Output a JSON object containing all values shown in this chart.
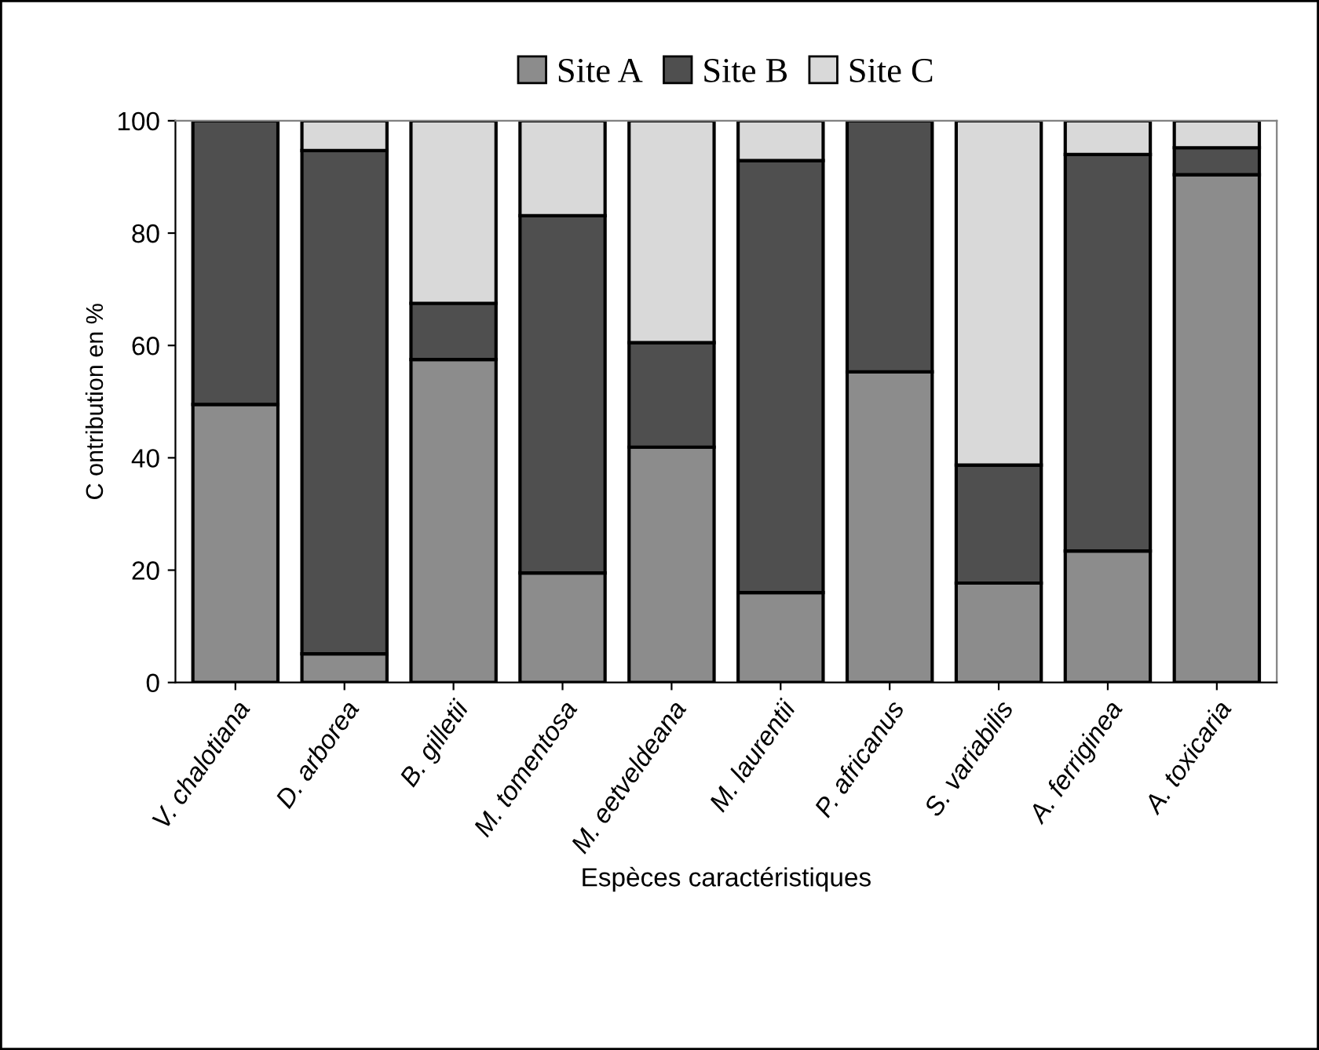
{
  "chart_data": {
    "type": "bar",
    "stacked": true,
    "categories": [
      "V. chalotiana",
      "D. arborea",
      "B. gilletii",
      "M. tomentosa",
      "M. eetveldeana",
      "M. laurentii",
      "P. africanus",
      "S. variabilis",
      "A. ferriginea",
      "A. toxicaria"
    ],
    "series": [
      {
        "name": "Site A",
        "color": "#8c8c8c",
        "values": [
          49.5,
          5.1,
          57.5,
          19.5,
          41.9,
          16,
          55.3,
          17.7,
          23.4,
          90.4
        ]
      },
      {
        "name": "Site B",
        "color": "#4f4f4f",
        "values": [
          50.5,
          89.6,
          10,
          63.6,
          18.6,
          76.9,
          44.7,
          21,
          70.6,
          4.8
        ]
      },
      {
        "name": "Site C",
        "color": "#d9d9d9",
        "values": [
          null,
          5.3,
          32.5,
          16.9,
          39.5,
          7.1,
          null,
          61.3,
          6,
          4.8
        ]
      }
    ],
    "xlabel": "Espèces caractéristiques",
    "ylabel": "C ontribution en %",
    "ylim": [
      0,
      100
    ],
    "yticks": [
      0,
      20,
      40,
      60,
      80,
      100
    ],
    "legend": "top",
    "grid": false
  }
}
